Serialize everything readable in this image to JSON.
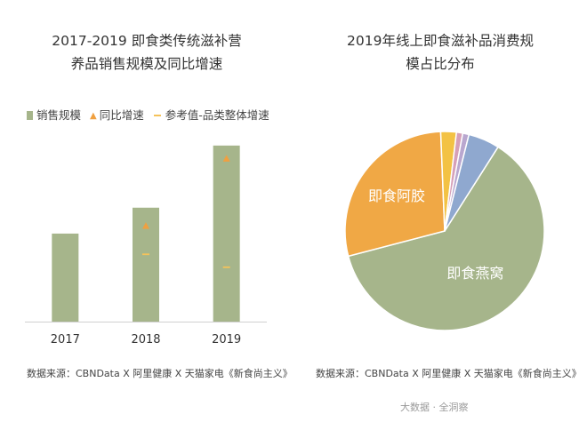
{
  "colors": {
    "bar": "#a6b58b",
    "growth_marker": "#f0a040",
    "reference_marker": "#f5c25a",
    "pie": [
      "#a6b58b",
      "#f0a845",
      "#f3c244",
      "#d6a0b8",
      "#b9a7cf",
      "#8fa8cf"
    ]
  },
  "chart_data": [
    {
      "type": "bar",
      "title_lines": [
        "2017-2019 即食类传统滋补营",
        "养品销售规模及同比增速"
      ],
      "legend": {
        "bar_label": "销售规模",
        "growth_label": "同比增速",
        "reference_label": "参考值-品类整体增速"
      },
      "categories": [
        "2017",
        "2018",
        "2019"
      ],
      "series": [
        {
          "name": "销售规模",
          "kind": "bar",
          "values": [
            34,
            44,
            68
          ]
        },
        {
          "name": "同比增速",
          "kind": "triangle-marker",
          "values": [
            null,
            37,
            63
          ]
        },
        {
          "name": "参考值-品类整体增速",
          "kind": "dash-marker",
          "values": [
            null,
            26,
            21
          ]
        }
      ],
      "ylim": [
        0,
        70
      ],
      "y_axis_visible": false,
      "grid": false,
      "source": "数据来源：CBNData X 阿里健康 X 天猫家电《新食尚主义》"
    },
    {
      "type": "pie",
      "title_lines": [
        "2019年线上即食滋补品消费规",
        "模占比分布"
      ],
      "slices": [
        {
          "label": "即食燕窝",
          "value": 61
        },
        {
          "label": "即食阿胶",
          "value": 28
        },
        {
          "label": "",
          "value": 2.5
        },
        {
          "label": "",
          "value": 1
        },
        {
          "label": "",
          "value": 1
        },
        {
          "label": "",
          "value": 5
        }
      ],
      "source": "数据来源：CBNData X 阿里健康 X 天猫家电《新食尚主义》"
    }
  ],
  "watermark": "大数据 · 全洞察"
}
